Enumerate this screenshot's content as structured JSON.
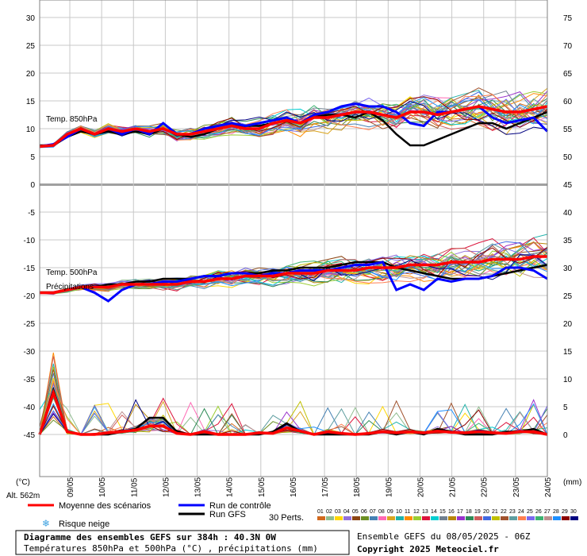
{
  "chart_data": {
    "type": "line",
    "dates": [
      "09/05",
      "10/05",
      "11/05",
      "12/05",
      "13/05",
      "14/05",
      "15/05",
      "16/05",
      "17/05",
      "18/05",
      "19/05",
      "20/05",
      "21/05",
      "22/05",
      "23/05",
      "24/05"
    ],
    "left_ticks": [
      "30",
      "25",
      "20",
      "15",
      "10",
      "5",
      "0",
      "-5",
      "-10",
      "-15",
      "-20",
      "-25",
      "-30",
      "-35",
      "-40",
      "-45"
    ],
    "right_ticks_top": [
      "75",
      "70",
      "65",
      "60",
      "55",
      "50"
    ],
    "right_ticks_bottom": [
      "45",
      "40",
      "35",
      "30",
      "25",
      "20",
      "15",
      "10",
      "5",
      "0"
    ],
    "temp850_label": "Temp. 850hPa",
    "temp500_label": "Temp. 500hPa",
    "precip_label": "Précipitations",
    "left_unit": "(°C)",
    "right_unit": "(mm)",
    "altitude": "Alt. 562m",
    "series": [
      {
        "name": "Moyenne des scénarios",
        "color": "#ff0000",
        "t850": [
          6.8,
          7,
          9,
          10,
          9,
          10,
          9.5,
          10,
          9.5,
          10,
          9,
          9,
          9.5,
          10,
          10.5,
          10,
          10,
          11,
          11.5,
          11,
          12,
          12,
          12.5,
          13,
          13,
          12.5,
          12,
          13,
          13,
          12.5,
          13,
          13.5,
          14,
          13.5,
          13,
          13,
          13.5,
          14
        ],
        "t500": [
          -19.5,
          -19.5,
          -19,
          -18.5,
          -18.5,
          -18.5,
          -18,
          -18,
          -18,
          -18,
          -18,
          -17.5,
          -17.5,
          -17,
          -17,
          -16.5,
          -16.5,
          -16.5,
          -16,
          -16,
          -16,
          -15.5,
          -15.5,
          -15.5,
          -15,
          -15,
          -15,
          -14.5,
          -14.5,
          -14.5,
          -14,
          -14,
          -14,
          -13.5,
          -13.5,
          -13.5,
          -13,
          -13
        ],
        "precip": [
          0,
          7.5,
          0.5,
          0,
          0,
          0.3,
          0.5,
          0.8,
          1.5,
          1.5,
          0.2,
          0,
          0.5,
          0,
          0,
          0,
          0.3,
          0.2,
          1.2,
          0.6,
          0,
          0.5,
          0.2,
          0,
          0.2,
          0.5,
          0.3,
          0.5,
          0.3,
          0.6,
          0.4,
          0.3,
          0.5,
          0.3,
          0.2,
          0.5,
          0.5,
          0
        ]
      },
      {
        "name": "Run de contrôle",
        "color": "#0000ff",
        "t850": [
          6.8,
          7.2,
          8.5,
          10,
          9,
          10,
          9,
          10,
          9,
          11,
          9,
          9,
          10,
          10.5,
          11,
          10.5,
          11,
          11.5,
          12,
          11,
          12.5,
          13,
          14,
          14.5,
          14,
          14,
          13,
          11,
          10.5,
          13,
          13,
          13.5,
          14,
          12,
          11,
          11.5,
          12,
          9.5
        ],
        "t500": [
          -19.5,
          -19.5,
          -19,
          -18.5,
          -19.5,
          -21,
          -19,
          -18,
          -18,
          -17.5,
          -17.5,
          -17,
          -16.5,
          -16.5,
          -16,
          -16,
          -16.5,
          -16,
          -16,
          -15.5,
          -15.5,
          -15.5,
          -15,
          -14.5,
          -14.5,
          -14,
          -19,
          -18,
          -19,
          -17,
          -17.5,
          -17,
          -17,
          -16.5,
          -15,
          -15,
          -15.5,
          -17
        ]
      },
      {
        "name": "Run GFS",
        "color": "#000000",
        "t850": [
          7,
          7,
          8.5,
          9.5,
          9,
          9.5,
          9,
          9.5,
          9,
          10,
          9,
          8.5,
          9,
          10,
          10.5,
          10.5,
          10.5,
          11,
          11.5,
          11,
          12,
          12.5,
          12.5,
          12,
          13,
          11.5,
          9,
          7,
          7,
          8,
          9,
          10,
          11,
          11,
          10,
          11,
          12,
          13
        ],
        "t500": [
          -19.5,
          -19.5,
          -19,
          -18.5,
          -18.5,
          -18,
          -18,
          -17.5,
          -17.5,
          -17,
          -17,
          -17,
          -16.5,
          -16.5,
          -16,
          -16,
          -16,
          -15.5,
          -15.5,
          -15,
          -15,
          -15,
          -14.5,
          -14,
          -14,
          -14,
          -15,
          -15.5,
          -16,
          -16.5,
          -17,
          -17,
          -17,
          -16.5,
          -16,
          -15.5,
          -15,
          -14.5
        ],
        "precip": [
          0,
          8,
          0.5,
          0,
          0,
          0,
          0.5,
          1,
          3,
          3,
          0.5,
          0,
          0,
          0,
          0,
          0,
          0,
          0.5,
          2,
          0.5,
          0,
          0,
          0,
          0,
          0,
          0.5,
          0,
          0.5,
          0,
          1,
          0.5,
          0,
          0,
          0,
          0.5,
          0.5,
          1,
          0
        ]
      }
    ]
  },
  "legend": {
    "mean": "Moyenne des scénarios",
    "control": "Run de contrôle",
    "gfs": "Run GFS",
    "snow": "Risque neige",
    "perts": "30 Perts.",
    "pert_numbers": [
      "01",
      "02",
      "03",
      "04",
      "05",
      "06",
      "07",
      "08",
      "09",
      "10",
      "11",
      "12",
      "13",
      "14",
      "15",
      "16",
      "17",
      "18",
      "19",
      "20",
      "21",
      "22",
      "23",
      "24",
      "25",
      "26",
      "27",
      "28",
      "29",
      "30"
    ],
    "pert_colors": [
      "#d2691e",
      "#8fbc8f",
      "#ffd700",
      "#9370db",
      "#8b4513",
      "#6b8e23",
      "#4682b4",
      "#ff69b4",
      "#daa520",
      "#20b2aa",
      "#ff8c00",
      "#9acd32",
      "#dc143c",
      "#00ced1",
      "#708090",
      "#b8860b",
      "#9932cc",
      "#2e8b57",
      "#cd5c5c",
      "#4169e1",
      "#c0c000",
      "#a0522d",
      "#5f9ea0",
      "#ff7f50",
      "#7b68ee",
      "#3cb371",
      "#bc8f8f",
      "#1e90ff",
      "#8b0000",
      "#000080"
    ]
  },
  "footer": {
    "title": "Diagramme des ensembles GEFS sur 384h : 40.3N 0W",
    "subtitle": "Températures 850hPa et 500hPa (°C) , précipitations (mm)",
    "run": "Ensemble GEFS du 08/05/2025 - 06Z",
    "copyright": "Copyright 2025 Meteociel.fr"
  }
}
